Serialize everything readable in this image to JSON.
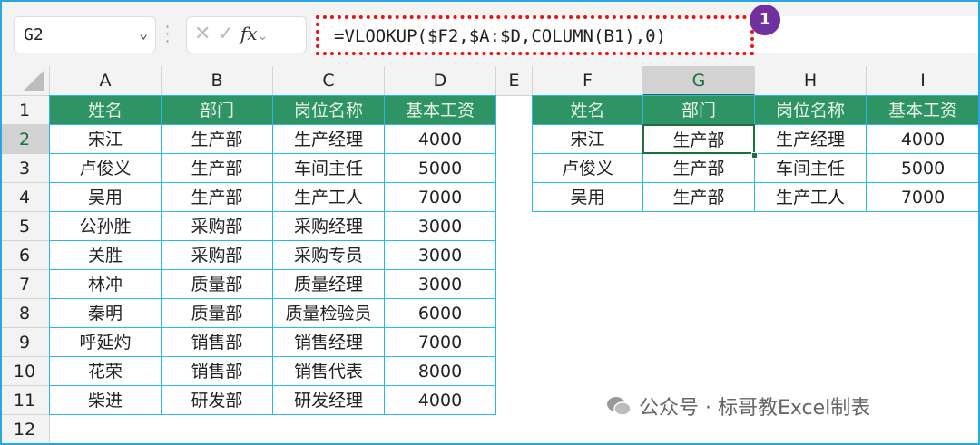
{
  "name_box": "G2",
  "formula": "=VLOOKUP($F2,$A:$D,COLUMN(B1),0)",
  "badge": "1",
  "fx_label": "fx",
  "columns": [
    "A",
    "B",
    "C",
    "D",
    "E",
    "F",
    "G",
    "H",
    "I"
  ],
  "rows": [
    "1",
    "2",
    "3",
    "4",
    "5",
    "6",
    "7",
    "8",
    "9",
    "10",
    "11",
    "12"
  ],
  "left_table": {
    "headers": [
      "姓名",
      "部门",
      "岗位名称",
      "基本工资"
    ],
    "rows": [
      [
        "宋江",
        "生产部",
        "生产经理",
        "4000"
      ],
      [
        "卢俊义",
        "生产部",
        "车间主任",
        "5000"
      ],
      [
        "吴用",
        "生产部",
        "生产工人",
        "7000"
      ],
      [
        "公孙胜",
        "采购部",
        "采购经理",
        "3000"
      ],
      [
        "关胜",
        "采购部",
        "采购专员",
        "3000"
      ],
      [
        "林冲",
        "质量部",
        "质量经理",
        "3000"
      ],
      [
        "秦明",
        "质量部",
        "质量检验员",
        "6000"
      ],
      [
        "呼延灼",
        "销售部",
        "销售经理",
        "7000"
      ],
      [
        "花荣",
        "销售部",
        "销售代表",
        "8000"
      ],
      [
        "柴进",
        "研发部",
        "研发经理",
        "4000"
      ]
    ]
  },
  "right_table": {
    "headers": [
      "姓名",
      "部门",
      "岗位名称",
      "基本工资"
    ],
    "rows": [
      [
        "宋江",
        "生产部",
        "生产经理",
        "4000"
      ],
      [
        "卢俊义",
        "生产部",
        "车间主任",
        "5000"
      ],
      [
        "吴用",
        "生产部",
        "生产工人",
        "7000"
      ]
    ]
  },
  "selected_cell": "G2",
  "watermark": "公众号 · 标哥教Excel制表",
  "colors": {
    "header_fill": "#2e9463",
    "border": "#29b6e8",
    "highlight": "#e11111",
    "badge": "#7030a0"
  }
}
